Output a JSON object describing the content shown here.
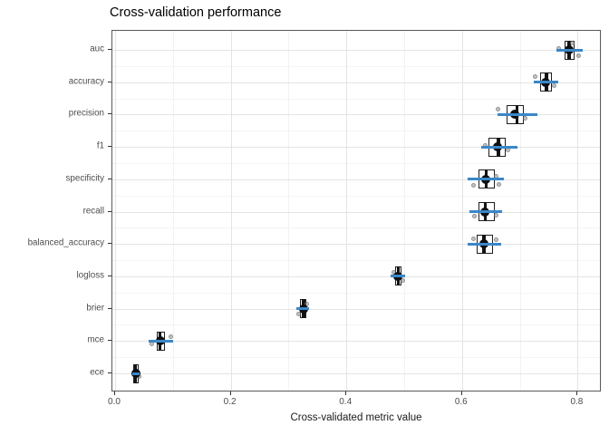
{
  "chart_data": {
    "type": "boxplot",
    "orientation": "horizontal",
    "title": "Cross-validation performance",
    "xlabel": "Cross-validated metric value",
    "ylabel": "",
    "xlim": [
      -0.0047,
      0.8417
    ],
    "x_major_ticks": [
      0.0,
      0.2,
      0.4,
      0.6,
      0.8
    ],
    "x_tick_labels": [
      "0.0",
      "0.2",
      "0.4",
      "0.6",
      "0.8"
    ],
    "x_minor_ticks": [
      0.1,
      0.3,
      0.5,
      0.7
    ],
    "grid": "major+minor",
    "legend_position": "none",
    "categories": [
      "auc",
      "accuracy",
      "precision",
      "f1",
      "specificity",
      "recall",
      "balanced_accuracy",
      "logloss",
      "brier",
      "mce",
      "ece"
    ],
    "series": [
      {
        "metric": "auc",
        "whisker_lo": 0.77,
        "q1": 0.778,
        "median": 0.785,
        "q3": 0.794,
        "whisker_hi": 0.801,
        "mean": 0.786,
        "bar_lo": 0.764,
        "bar_hi": 0.809,
        "jitter": [
          {
            "v": 0.767,
            "dy": -2
          },
          {
            "v": 0.801,
            "dy": 6
          },
          {
            "v": 0.79,
            "dy": -8
          }
        ]
      },
      {
        "metric": "accuracy",
        "whisker_lo": 0.729,
        "q1": 0.735,
        "median": 0.746,
        "q3": 0.755,
        "whisker_hi": 0.761,
        "mean": 0.745,
        "bar_lo": 0.724,
        "bar_hi": 0.766,
        "jitter": [
          {
            "v": 0.727,
            "dy": -6
          },
          {
            "v": 0.76,
            "dy": 4
          }
        ]
      },
      {
        "metric": "precision",
        "whisker_lo": 0.668,
        "q1": 0.677,
        "median": 0.695,
        "q3": 0.707,
        "whisker_hi": 0.712,
        "mean": 0.691,
        "bar_lo": 0.661,
        "bar_hi": 0.731,
        "jitter": [
          {
            "v": 0.662,
            "dy": -6
          },
          {
            "v": 0.709,
            "dy": 4
          }
        ]
      },
      {
        "metric": "f1",
        "whisker_lo": 0.638,
        "q1": 0.646,
        "median": 0.663,
        "q3": 0.675,
        "whisker_hi": 0.683,
        "mean": 0.662,
        "bar_lo": 0.633,
        "bar_hi": 0.696,
        "jitter": [
          {
            "v": 0.641,
            "dy": -2
          },
          {
            "v": 0.68,
            "dy": 3
          }
        ]
      },
      {
        "metric": "specificity",
        "whisker_lo": 0.615,
        "q1": 0.629,
        "median": 0.642,
        "q3": 0.657,
        "whisker_hi": 0.664,
        "mean": 0.641,
        "bar_lo": 0.61,
        "bar_hi": 0.672,
        "jitter": [
          {
            "v": 0.62,
            "dy": 7
          },
          {
            "v": 0.659,
            "dy": -3
          },
          {
            "v": 0.664,
            "dy": 6
          }
        ]
      },
      {
        "metric": "recall",
        "whisker_lo": 0.617,
        "q1": 0.628,
        "median": 0.64,
        "q3": 0.656,
        "whisker_hi": 0.663,
        "mean": 0.64,
        "bar_lo": 0.613,
        "bar_hi": 0.67,
        "jitter": [
          {
            "v": 0.622,
            "dy": 5
          },
          {
            "v": 0.659,
            "dy": 4
          }
        ]
      },
      {
        "metric": "balanced_accuracy",
        "whisker_lo": 0.614,
        "q1": 0.625,
        "median": 0.638,
        "q3": 0.654,
        "whisker_hi": 0.661,
        "mean": 0.638,
        "bar_lo": 0.61,
        "bar_hi": 0.667,
        "jitter": [
          {
            "v": 0.62,
            "dy": -6
          },
          {
            "v": 0.659,
            "dy": -5
          }
        ]
      },
      {
        "metric": "logloss",
        "whisker_lo": 0.48,
        "q1": 0.484,
        "median": 0.49,
        "q3": 0.495,
        "whisker_hi": 0.499,
        "mean": 0.489,
        "bar_lo": 0.477,
        "bar_hi": 0.502,
        "jitter": [
          {
            "v": 0.497,
            "dy": 5
          },
          {
            "v": 0.482,
            "dy": -4
          }
        ]
      },
      {
        "metric": "brier",
        "whisker_lo": 0.317,
        "q1": 0.32,
        "median": 0.326,
        "q3": 0.331,
        "whisker_hi": 0.334,
        "mean": 0.326,
        "bar_lo": 0.314,
        "bar_hi": 0.336,
        "jitter": [
          {
            "v": 0.332,
            "dy": -5
          },
          {
            "v": 0.318,
            "dy": 6
          }
        ]
      },
      {
        "metric": "mce",
        "whisker_lo": 0.065,
        "q1": 0.072,
        "median": 0.078,
        "q3": 0.087,
        "whisker_hi": 0.093,
        "mean": 0.078,
        "bar_lo": 0.058,
        "bar_hi": 0.1,
        "jitter": [
          {
            "v": 0.097,
            "dy": -5
          },
          {
            "v": 0.063,
            "dy": 3
          }
        ]
      },
      {
        "metric": "ece",
        "whisker_lo": 0.031,
        "q1": 0.032,
        "median": 0.035,
        "q3": 0.04,
        "whisker_hi": 0.042,
        "mean": 0.036,
        "bar_lo": 0.029,
        "bar_hi": 0.042,
        "jitter": [
          {
            "v": 0.041,
            "dy": 3
          }
        ]
      }
    ]
  },
  "colors": {
    "crossbar_blue": "#3a87c8",
    "box_stroke": "#1f1f1f",
    "mean_point": "#0d0f14",
    "jitter_grey": "#9b9b9b",
    "grid_major": "#e4e4e4",
    "grid_minor": "#f2f2f2",
    "panel_border": "#595959",
    "axis_text": "#4d4d4d",
    "title_text": "#000000",
    "background": "#ffffff"
  }
}
